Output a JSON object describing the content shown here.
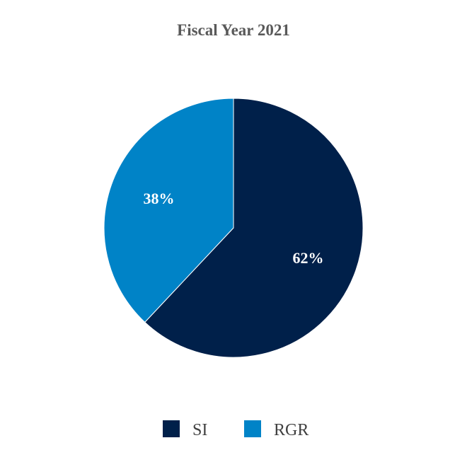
{
  "chart_data": {
    "type": "pie",
    "title": "Fiscal Year 2021",
    "slices": [
      {
        "name": "SI",
        "value": 62,
        "label": "62%",
        "color": "#00204A"
      },
      {
        "name": "RGR",
        "value": 38,
        "label": "38%",
        "color": "#0083C7"
      }
    ],
    "start_angle_deg": 0,
    "direction": "clockwise",
    "legend_position": "bottom"
  }
}
